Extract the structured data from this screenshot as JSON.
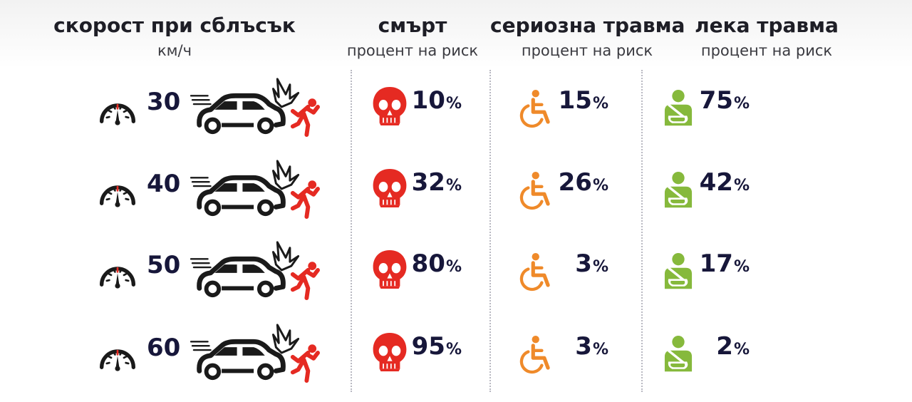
{
  "headers": {
    "speed": {
      "title": "скорост при сблъсък",
      "subtitle": "км/ч"
    },
    "death": {
      "title": "смърт",
      "subtitle": "процент на риск"
    },
    "serious": {
      "title": "сериозна травма",
      "subtitle": "процент на риск"
    },
    "light": {
      "title": "лека травма",
      "subtitle": "процент на риск"
    }
  },
  "percent_sign": "%",
  "rows": [
    {
      "speed": "30",
      "death": "10",
      "serious": "15",
      "light": "75"
    },
    {
      "speed": "40",
      "death": "32",
      "serious": "26",
      "light": "42"
    },
    {
      "speed": "50",
      "death": "80",
      "serious": "3",
      "light": "17"
    },
    {
      "speed": "60",
      "death": "95",
      "serious": "3",
      "light": "2"
    }
  ],
  "colors": {
    "text": "#17173a",
    "death": "#e52a22",
    "serious": "#ef8a2a",
    "light": "#86b93c",
    "gauge_needle": "#e52a22"
  },
  "icons": {
    "speed": "speedometer-icon",
    "crash": "car-crash-pedestrian-icon",
    "death": "skull-icon",
    "serious": "wheelchair-icon",
    "light": "arm-sling-icon"
  }
}
